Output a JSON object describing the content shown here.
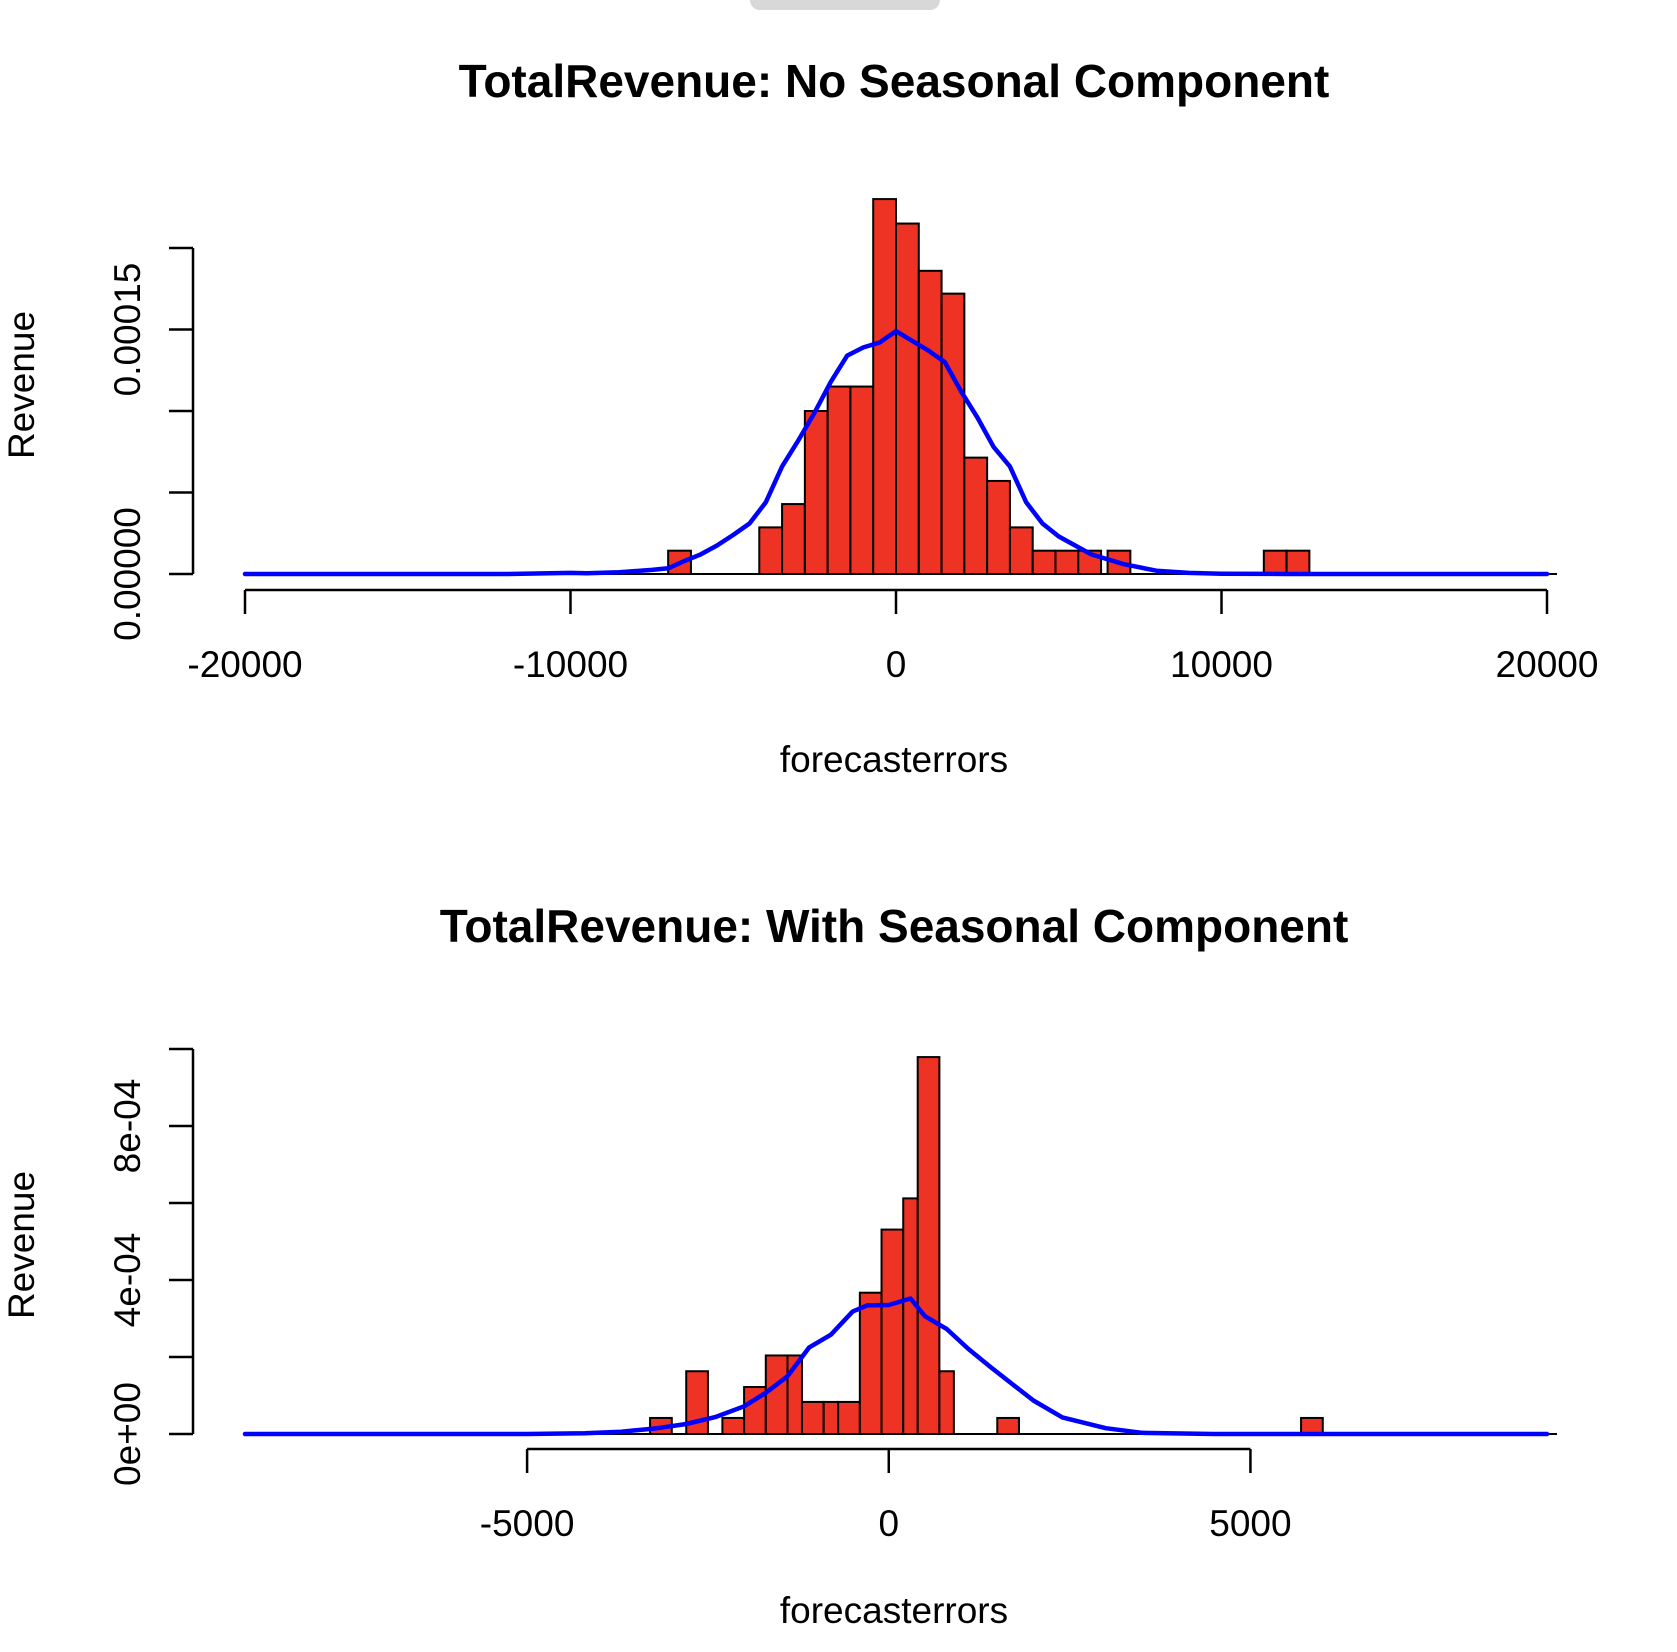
{
  "window": {
    "drag_handle_icon": "drag-handle-icon"
  },
  "colors": {
    "bar_fill": "#ee3324",
    "bar_stroke": "#000000",
    "density_line": "#0000ff"
  },
  "chart_data": [
    {
      "type": "bar",
      "title": "TotalRevenue: No Seasonal Component",
      "xlabel": "forecasterrors",
      "ylabel": "Revenue",
      "xlim": [
        -20000,
        20000
      ],
      "ylim": [
        0,
        0.0002
      ],
      "xticks": [
        -20000,
        -10000,
        0,
        10000,
        20000
      ],
      "xtick_labels": [
        "-20000",
        "-10000",
        "0",
        "10000",
        "20000"
      ],
      "yticks": [
        0,
        5e-05,
        0.0001,
        0.00015,
        0.0002
      ],
      "ytick_labels": [
        "0.00000",
        "",
        "",
        "0.00015",
        ""
      ],
      "bins": [
        {
          "x0": -7000,
          "x1": -6300,
          "density": 1.43e-05
        },
        {
          "x0": -4200,
          "x1": -3500,
          "density": 2.86e-05
        },
        {
          "x0": -3500,
          "x1": -2800,
          "density": 4.29e-05
        },
        {
          "x0": -2800,
          "x1": -2100,
          "density": 0.0001
        },
        {
          "x0": -2100,
          "x1": -1400,
          "density": 0.000115
        },
        {
          "x0": -1400,
          "x1": -700,
          "density": 0.000115
        },
        {
          "x0": -700,
          "x1": 0,
          "density": 0.00023
        },
        {
          "x0": 0,
          "x1": 700,
          "density": 0.000215
        },
        {
          "x0": 700,
          "x1": 1400,
          "density": 0.000186
        },
        {
          "x0": 1400,
          "x1": 2100,
          "density": 0.000172
        },
        {
          "x0": 2100,
          "x1": 2800,
          "density": 7.14e-05
        },
        {
          "x0": 2800,
          "x1": 3500,
          "density": 5.71e-05
        },
        {
          "x0": 3500,
          "x1": 4200,
          "density": 2.86e-05
        },
        {
          "x0": 4200,
          "x1": 4900,
          "density": 1.43e-05
        },
        {
          "x0": 4900,
          "x1": 5600,
          "density": 1.43e-05
        },
        {
          "x0": 5600,
          "x1": 6300,
          "density": 1.43e-05
        },
        {
          "x0": 6500,
          "x1": 7200,
          "density": 1.43e-05
        },
        {
          "x0": 11300,
          "x1": 12000,
          "density": 1.43e-05
        },
        {
          "x0": 12000,
          "x1": 12700,
          "density": 1.43e-05
        }
      ],
      "series": [
        {
          "kind": "line",
          "x": [
            -20000,
            -12000,
            -10000,
            -9500,
            -8500,
            -7500,
            -7000,
            -6500,
            -6000,
            -5500,
            -5000,
            -4500,
            -4000,
            -3500,
            -3000,
            -2500,
            -2000,
            -1500,
            -1000,
            -500,
            0,
            500,
            1000,
            1500,
            2000,
            2500,
            3000,
            3500,
            4000,
            4500,
            5000,
            6000,
            7000,
            8000,
            9000,
            10000,
            12000,
            15000,
            20000
          ],
          "values": [
            0,
            0,
            7e-07,
            5e-07,
            1.1e-06,
            2.5e-06,
            3.5e-06,
            8e-06,
            1.2e-05,
            1.75e-05,
            2.4e-05,
            3.1e-05,
            4.4e-05,
            6.6e-05,
            8.2e-05,
            9.9e-05,
            0.000118,
            0.000134,
            0.000139,
            0.000142,
            0.000149,
            0.000143,
            0.000137,
            0.00013,
            0.000112,
            9.6e-05,
            7.8e-05,
            6.6e-05,
            4.4e-05,
            3.1e-05,
            2.3e-05,
            1.2e-05,
            6e-06,
            2e-06,
            7e-07,
            2e-07,
            0,
            0,
            0
          ]
        }
      ]
    },
    {
      "type": "bar",
      "title": "TotalRevenue: With Seasonal Component",
      "xlabel": "forecasterrors",
      "ylabel": "Revenue",
      "xlim": [
        -8900,
        9100
      ],
      "ylim": [
        0,
        0.001
      ],
      "xticks": [
        -5000,
        0,
        5000
      ],
      "xtick_labels": [
        "-5000",
        "0",
        "5000"
      ],
      "yticks": [
        0,
        0.0002,
        0.0004,
        0.0006,
        0.0008,
        0.001
      ],
      "ytick_labels": [
        "0e+00",
        "",
        "4e-04",
        "",
        "8e-04",
        ""
      ],
      "bins": [
        {
          "x0": -3300,
          "x1": -3000,
          "density": 4.17e-05
        },
        {
          "x0": -2800,
          "x1": -2500,
          "density": 0.000163
        },
        {
          "x0": -2300,
          "x1": -2000,
          "density": 4.17e-05
        },
        {
          "x0": -2000,
          "x1": -1700,
          "density": 0.000122
        },
        {
          "x0": -1700,
          "x1": -1400,
          "density": 0.000204
        },
        {
          "x0": -1400,
          "x1": -1200,
          "density": 0.000204
        },
        {
          "x0": -1200,
          "x1": -900,
          "density": 8.33e-05
        },
        {
          "x0": -900,
          "x1": -700,
          "density": 8.33e-05
        },
        {
          "x0": -700,
          "x1": -400,
          "density": 8.33e-05
        },
        {
          "x0": -400,
          "x1": -100,
          "density": 0.000367
        },
        {
          "x0": -100,
          "x1": 200,
          "density": 0.000531
        },
        {
          "x0": 200,
          "x1": 400,
          "density": 0.000612
        },
        {
          "x0": 400,
          "x1": 700,
          "density": 0.000979
        },
        {
          "x0": 700,
          "x1": 900,
          "density": 0.000163
        },
        {
          "x0": 1500,
          "x1": 1800,
          "density": 4.17e-05
        },
        {
          "x0": 5700,
          "x1": 6000,
          "density": 4.17e-05
        }
      ],
      "series": [
        {
          "kind": "line",
          "x": [
            -8900,
            -5000,
            -4200,
            -3700,
            -3200,
            -2800,
            -2400,
            -2000,
            -1700,
            -1400,
            -1100,
            -800,
            -500,
            -300,
            0,
            300,
            500,
            800,
            1100,
            1400,
            1700,
            2000,
            2400,
            3000,
            3500,
            4500,
            9100
          ],
          "values": [
            0,
            0,
            2e-06,
            6e-06,
            1.5e-05,
            2.6e-05,
            4.4e-05,
            7.2e-05,
            0.000107,
            0.00015,
            0.000225,
            0.000258,
            0.000318,
            0.000334,
            0.000335,
            0.000352,
            0.000306,
            0.000273,
            0.000221,
            0.000175,
            0.000131,
            8.7e-05,
            4.3e-05,
            1.5e-05,
            3e-06,
            0,
            0
          ]
        }
      ]
    }
  ]
}
